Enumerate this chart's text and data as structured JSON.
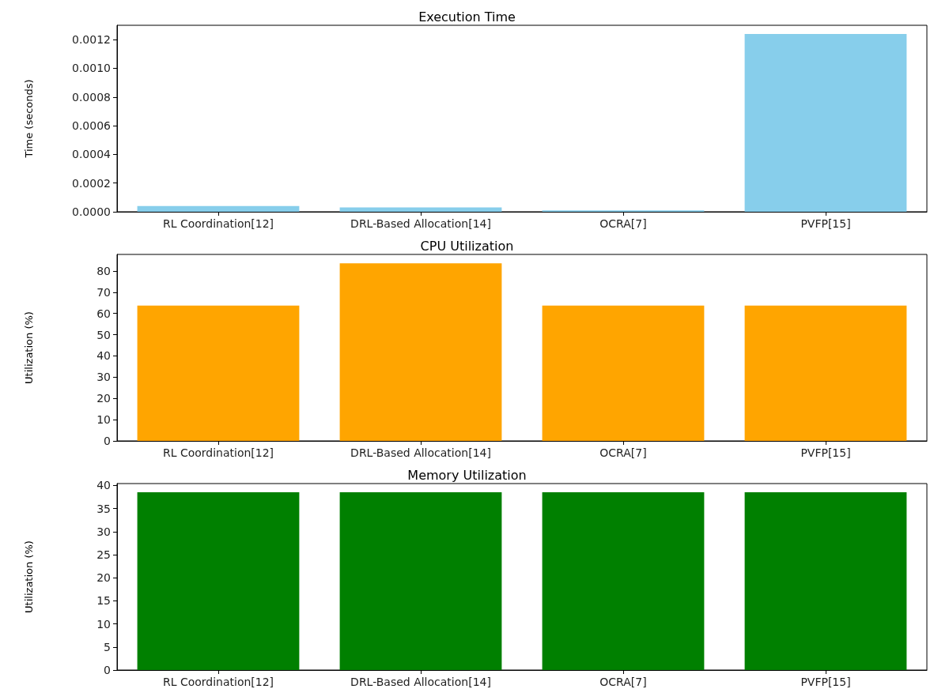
{
  "chart_data": [
    {
      "type": "bar",
      "title": "Execution Time",
      "ylabel": "Time (seconds)",
      "categories": [
        "RL Coordination[12]",
        "DRL-Based Allocation[14]",
        "OCRA[7]",
        "PVFP[15]"
      ],
      "values": [
        4e-05,
        3e-05,
        1e-05,
        0.00124
      ],
      "color": "#87ceeb",
      "ylim": [
        0,
        0.0013
      ],
      "yticks": [
        {
          "value": 0,
          "label": "0.0000"
        },
        {
          "value": 0.0002,
          "label": "0.0002"
        },
        {
          "value": 0.0004,
          "label": "0.0004"
        },
        {
          "value": 0.0006,
          "label": "0.0006"
        },
        {
          "value": 0.0008,
          "label": "0.0008"
        },
        {
          "value": 0.001,
          "label": "0.0010"
        },
        {
          "value": 0.0012,
          "label": "0.0012"
        }
      ],
      "grid": false
    },
    {
      "type": "bar",
      "title": "CPU Utilization",
      "ylabel": "Utilization (%)",
      "categories": [
        "RL Coordination[12]",
        "DRL-Based Allocation[14]",
        "OCRA[7]",
        "PVFP[15]"
      ],
      "values": [
        63.7,
        83.6,
        63.7,
        63.7
      ],
      "color": "#ffa500",
      "ylim": [
        0,
        87.8
      ],
      "yticks": [
        0,
        10,
        20,
        30,
        40,
        50,
        60,
        70,
        80
      ],
      "grid": false
    },
    {
      "type": "bar",
      "title": "Memory Utilization",
      "ylabel": "Utilization (%)",
      "categories": [
        "RL Coordination[12]",
        "DRL-Based Allocation[14]",
        "OCRA[7]",
        "PVFP[15]"
      ],
      "values": [
        38.5,
        38.5,
        38.5,
        38.5
      ],
      "color": "#008000",
      "ylim": [
        0,
        40.4
      ],
      "yticks": [
        0,
        5,
        10,
        15,
        20,
        25,
        30,
        35,
        40
      ],
      "grid": false
    }
  ]
}
